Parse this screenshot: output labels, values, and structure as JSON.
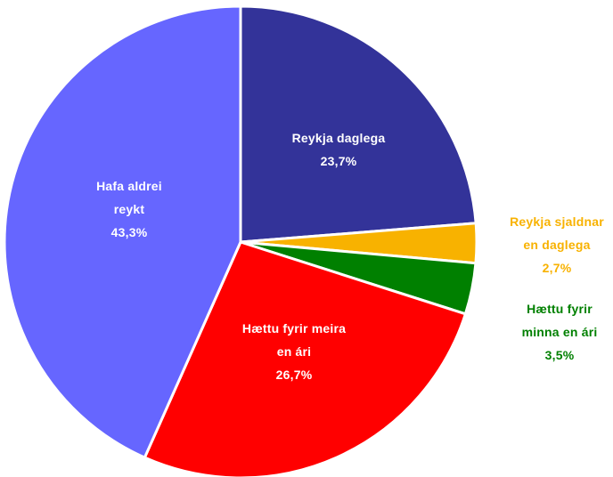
{
  "chart_data": {
    "type": "pie",
    "categories": [
      "Reykja daglega",
      "Reykja sjaldnar en daglega",
      "Hættu fyrir minna en ári",
      "Hættu fyrir meira en ári",
      "Hafa aldrei reykt"
    ],
    "values": [
      23.7,
      2.7,
      3.5,
      26.7,
      43.3
    ],
    "value_labels": [
      "23,7%",
      "2,7%",
      "3,5%",
      "26,7%",
      "43,3%"
    ],
    "colors": [
      "#333399",
      "#f8b200",
      "#008000",
      "#ff0000",
      "#6666ff"
    ]
  }
}
